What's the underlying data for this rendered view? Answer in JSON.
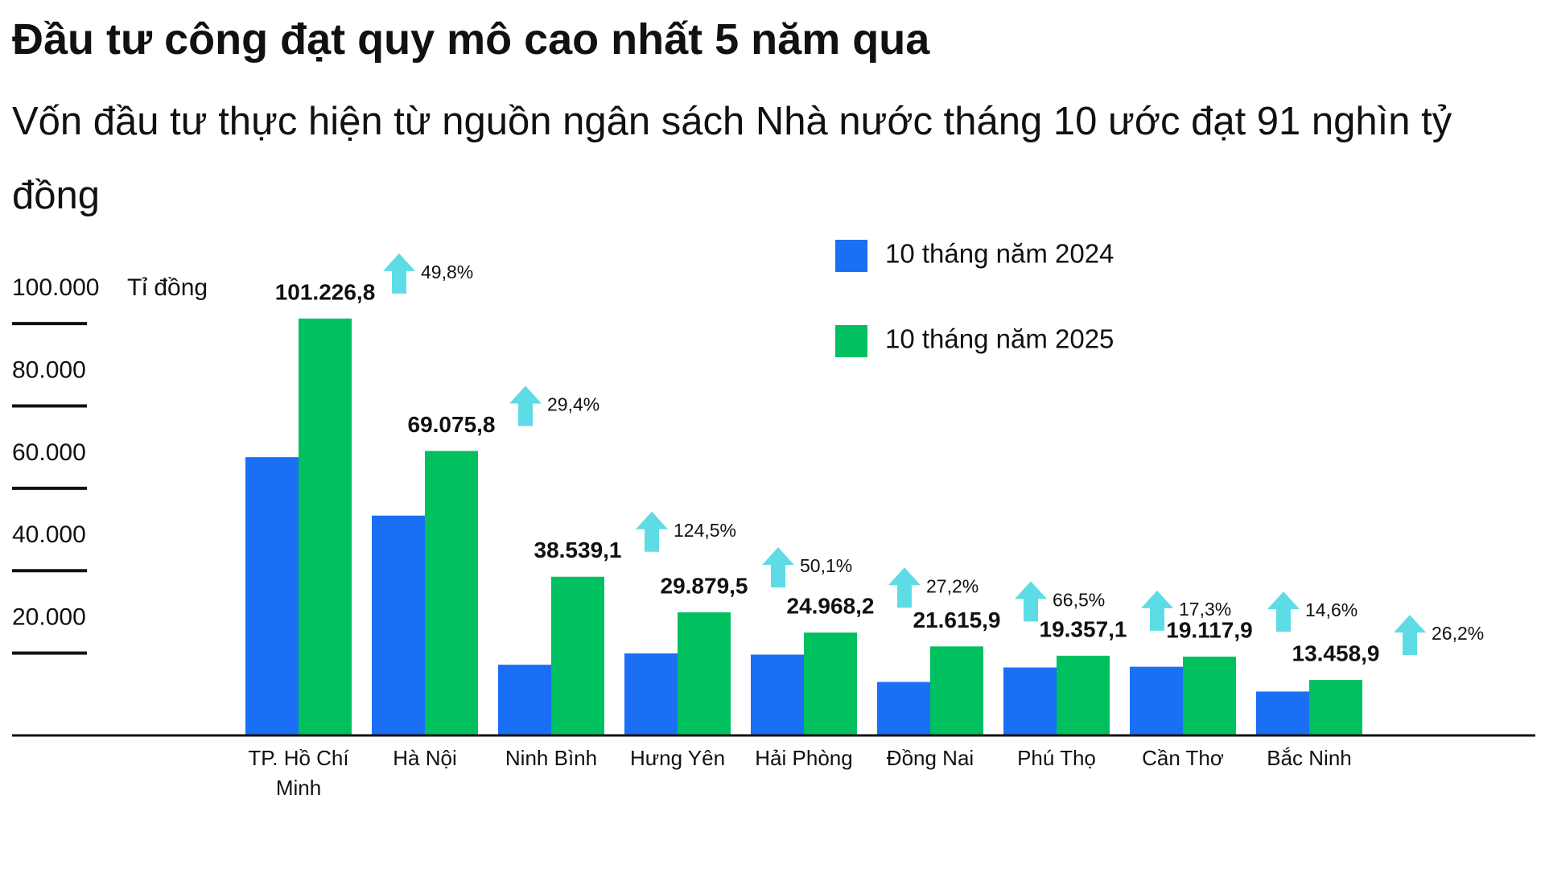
{
  "title": "Đầu tư công đạt quy mô cao nhất 5 năm qua",
  "subtitle": "Vốn đầu tư thực hiện từ nguồn ngân sách Nhà nước tháng 10 ước đạt 91 nghìn tỷ đồng",
  "chart_data": {
    "type": "bar",
    "y_label": "Tỉ đồng",
    "categories": [
      "TP. Hồ Chí Minh",
      "Hà Nội",
      "Ninh Bình",
      "Hưng Yên",
      "Hải Phòng",
      "Đồng Nai",
      "Phú Thọ",
      "Cần Thơ",
      "Bắc Ninh"
    ],
    "series": [
      {
        "name": "10 tháng năm 2024",
        "color": "#1a6ff5",
        "values": [
          67575,
          53382,
          17166,
          19907,
          19629,
          12983,
          16502,
          16682,
          10665
        ]
      },
      {
        "name": "10 tháng năm 2025",
        "color": "#00c060",
        "values": [
          101226.8,
          69075.8,
          38539.1,
          29879.5,
          24968.2,
          21615.9,
          19357.1,
          19117.9,
          13458.9
        ],
        "value_labels": [
          "101.226,8",
          "69.075,8",
          "38.539,1",
          "29.879,5",
          "24.968,2",
          "21.615,9",
          "19.357,1",
          "19.117,9",
          "13.458,9"
        ]
      }
    ],
    "growth_labels": [
      "49,8%",
      "29,4%",
      "124,5%",
      "50,1%",
      "27,2%",
      "66,5%",
      "17,3%",
      "14,6%",
      "26,2%"
    ],
    "growth_color": "#5ddce6",
    "ylim": [
      0,
      110000
    ],
    "yticks": [
      {
        "value": 20000,
        "label": "20.000"
      },
      {
        "value": 40000,
        "label": "40.000"
      },
      {
        "value": 60000,
        "label": "60.000"
      },
      {
        "value": 80000,
        "label": "80.000"
      },
      {
        "value": 100000,
        "label": "100.000"
      }
    ]
  }
}
